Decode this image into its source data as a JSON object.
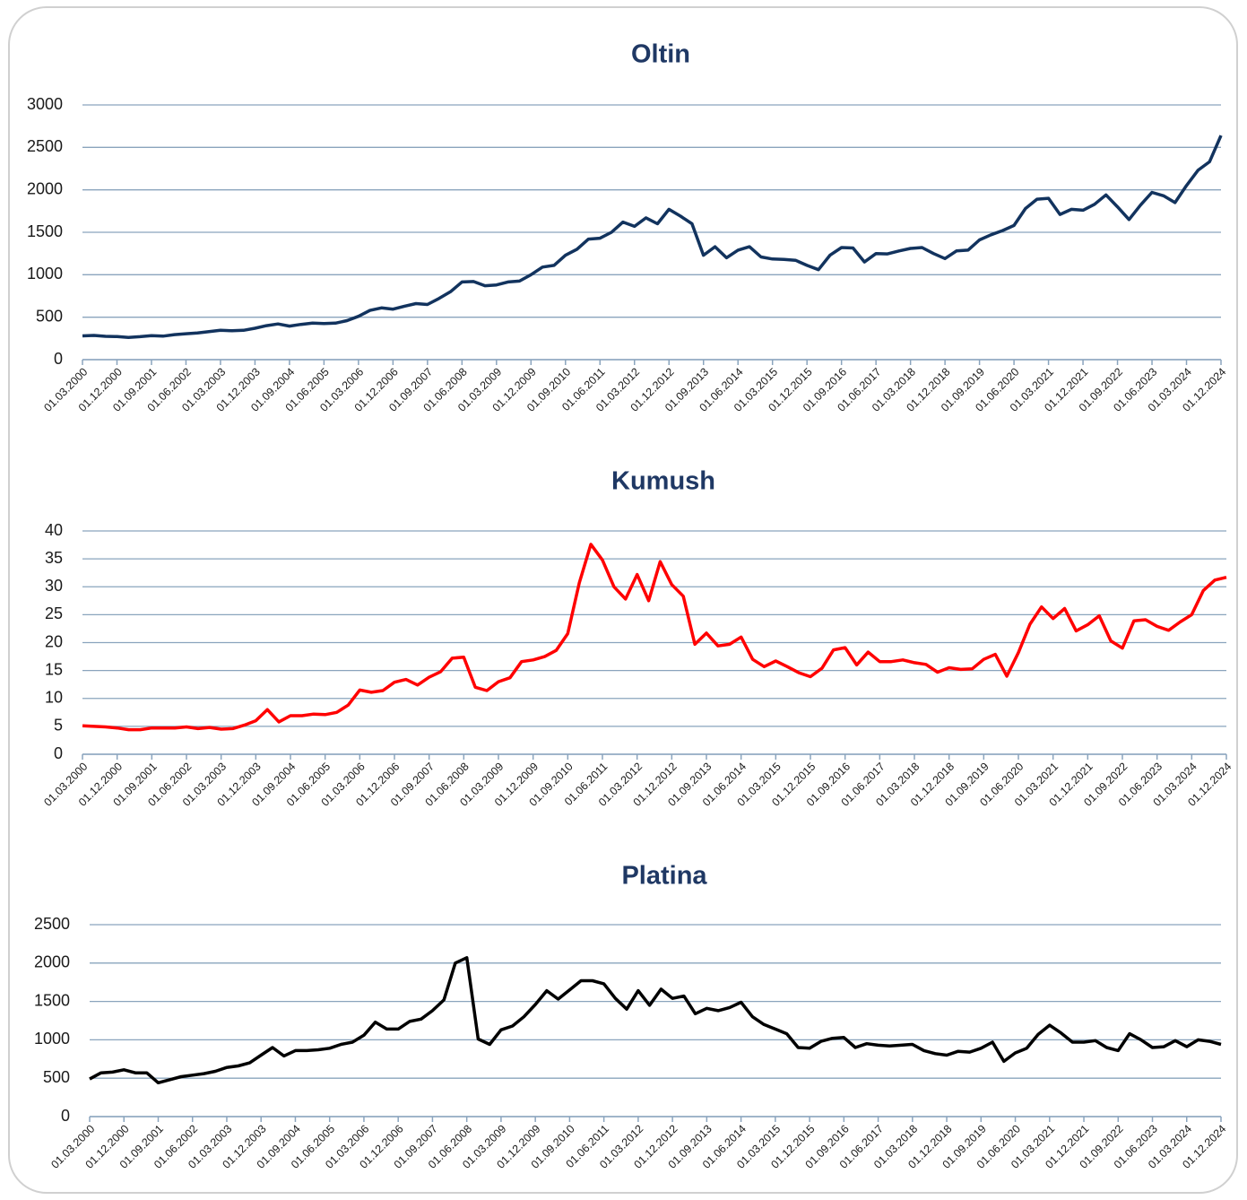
{
  "chart_data": [
    {
      "type": "line",
      "title": "Oltin",
      "color": "#12335e",
      "grid": true,
      "categories": [
        "01.03.2000",
        null,
        null,
        "01.12.2000",
        null,
        null,
        "01.09.2001",
        null,
        null,
        "01.06.2002",
        null,
        null,
        "01.03.2003",
        null,
        null,
        "01.12.2003",
        null,
        null,
        "01.09.2004",
        null,
        null,
        "01.06.2005",
        null,
        null,
        "01.03.2006",
        null,
        null,
        "01.12.2006",
        null,
        null,
        "01.09.2007",
        null,
        null,
        "01.06.2008",
        null,
        null,
        "01.03.2009",
        null,
        null,
        "01.12.2009",
        null,
        null,
        "01.09.2010",
        null,
        null,
        "01.06.2011",
        null,
        null,
        "01.03.2012",
        null,
        null,
        "01.12.2012",
        null,
        null,
        "01.09.2013",
        null,
        null,
        "01.06.2014",
        null,
        null,
        "01.03.2015",
        null,
        null,
        "01.12.2015",
        null,
        null,
        "01.09.2016",
        null,
        null,
        "01.06.2017",
        null,
        null,
        "01.03.2018",
        null,
        null,
        "01.12.2018",
        null,
        null,
        "01.09.2019",
        null,
        null,
        "01.06.2020",
        null,
        null,
        "01.03.2021",
        null,
        null,
        "01.12.2021",
        null,
        null,
        "01.09.2022",
        null,
        null,
        "01.06.2023",
        null,
        null,
        "01.03.2024",
        null,
        null,
        "01.12.2024"
      ],
      "values": [
        280,
        285,
        275,
        272,
        262,
        270,
        283,
        277,
        295,
        305,
        315,
        330,
        345,
        340,
        345,
        370,
        400,
        420,
        395,
        415,
        430,
        425,
        430,
        460,
        510,
        580,
        610,
        595,
        630,
        660,
        650,
        720,
        800,
        915,
        920,
        870,
        880,
        915,
        925,
        1000,
        1090,
        1110,
        1230,
        1300,
        1420,
        1430,
        1500,
        1620,
        1570,
        1670,
        1600,
        1770,
        1690,
        1600,
        1230,
        1330,
        1200,
        1290,
        1330,
        1210,
        1185,
        1180,
        1170,
        1110,
        1060,
        1230,
        1320,
        1315,
        1150,
        1250,
        1245,
        1280,
        1310,
        1320,
        1250,
        1190,
        1280,
        1290,
        1410,
        1470,
        1520,
        1580,
        1780,
        1890,
        1900,
        1710,
        1770,
        1760,
        1830,
        1940,
        1800,
        1650,
        1820,
        1970,
        1930,
        1850,
        2050,
        2230,
        2330,
        2640
      ],
      "ylim": [
        0,
        3000
      ],
      "yticks": [
        0,
        500,
        1000,
        1500,
        2000,
        2500,
        3000
      ]
    },
    {
      "type": "line",
      "title": "Kumush",
      "color": "#ff0000",
      "grid": true,
      "categories": [
        "01.03.2000",
        null,
        null,
        "01.12.2000",
        null,
        null,
        "01.09.2001",
        null,
        null,
        "01.06.2002",
        null,
        null,
        "01.03.2003",
        null,
        null,
        "01.12.2003",
        null,
        null,
        "01.09.2004",
        null,
        null,
        "01.06.2005",
        null,
        null,
        "01.03.2006",
        null,
        null,
        "01.12.2006",
        null,
        null,
        "01.09.2007",
        null,
        null,
        "01.06.2008",
        null,
        null,
        "01.03.2009",
        null,
        null,
        "01.12.2009",
        null,
        null,
        "01.09.2010",
        null,
        null,
        "01.06.2011",
        null,
        null,
        "01.03.2012",
        null,
        null,
        "01.12.2012",
        null,
        null,
        "01.09.2013",
        null,
        null,
        "01.06.2014",
        null,
        null,
        "01.03.2015",
        null,
        null,
        "01.12.2015",
        null,
        null,
        "01.09.2016",
        null,
        null,
        "01.06.2017",
        null,
        null,
        "01.03.2018",
        null,
        null,
        "01.12.2018",
        null,
        null,
        "01.09.2019",
        null,
        null,
        "01.06.2020",
        null,
        null,
        "01.03.2021",
        null,
        null,
        "01.12.2021",
        null,
        null,
        "01.09.2022",
        null,
        null,
        "01.06.2023",
        null,
        null,
        "01.03.2024",
        null,
        null,
        "01.12.2024"
      ],
      "values": [
        5.1,
        5.0,
        4.9,
        4.7,
        4.4,
        4.4,
        4.7,
        4.7,
        4.7,
        4.9,
        4.6,
        4.8,
        4.5,
        4.6,
        5.2,
        6.0,
        8.0,
        5.8,
        6.9,
        6.9,
        7.2,
        7.1,
        7.5,
        8.8,
        11.5,
        11.1,
        11.4,
        12.9,
        13.4,
        12.4,
        13.8,
        14.8,
        17.2,
        17.4,
        12.0,
        11.4,
        13.0,
        13.7,
        16.6,
        16.9,
        17.5,
        18.6,
        21.6,
        30.7,
        37.6,
        34.8,
        30.0,
        27.8,
        32.2,
        27.5,
        34.5,
        30.4,
        28.3,
        19.7,
        21.7,
        19.4,
        19.7,
        21.0,
        17.0,
        15.7,
        16.7,
        15.7,
        14.6,
        13.9,
        15.4,
        18.7,
        19.1,
        16.0,
        18.3,
        16.6,
        16.6,
        16.9,
        16.4,
        16.1,
        14.7,
        15.5,
        15.2,
        15.3,
        17.0,
        17.9,
        14.0,
        18.2,
        23.3,
        26.4,
        24.3,
        26.1,
        22.1,
        23.2,
        24.8,
        20.3,
        19.0,
        23.9,
        24.1,
        22.9,
        22.2,
        23.7,
        25.0,
        29.3,
        31.2,
        31.7
      ],
      "ylim": [
        0,
        40
      ],
      "yticks": [
        0,
        5,
        10,
        15,
        20,
        25,
        30,
        35,
        40
      ]
    },
    {
      "type": "line",
      "title": "Platina",
      "color": "#000000",
      "grid": true,
      "categories": [
        "01.03.2000",
        null,
        null,
        "01.12.2000",
        null,
        null,
        "01.09.2001",
        null,
        null,
        "01.06.2002",
        null,
        null,
        "01.03.2003",
        null,
        null,
        "01.12.2003",
        null,
        null,
        "01.09.2004",
        null,
        null,
        "01.06.2005",
        null,
        null,
        "01.03.2006",
        null,
        null,
        "01.12.2006",
        null,
        null,
        "01.09.2007",
        null,
        null,
        "01.06.2008",
        null,
        null,
        "01.03.2009",
        null,
        null,
        "01.12.2009",
        null,
        null,
        "01.09.2010",
        null,
        null,
        "01.06.2011",
        null,
        null,
        "01.03.2012",
        null,
        null,
        "01.12.2012",
        null,
        null,
        "01.09.2013",
        null,
        null,
        "01.06.2014",
        null,
        null,
        "01.03.2015",
        null,
        null,
        "01.12.2015",
        null,
        null,
        "01.09.2016",
        null,
        null,
        "01.06.2017",
        null,
        null,
        "01.03.2018",
        null,
        null,
        "01.12.2018",
        null,
        null,
        "01.09.2019",
        null,
        null,
        "01.06.2020",
        null,
        null,
        "01.03.2021",
        null,
        null,
        "01.12.2021",
        null,
        null,
        "01.09.2022",
        null,
        null,
        "01.06.2023",
        null,
        null,
        "01.03.2024",
        null,
        null,
        "01.12.2024"
      ],
      "values": [
        490,
        570,
        580,
        610,
        570,
        570,
        440,
        480,
        520,
        540,
        560,
        590,
        640,
        660,
        700,
        800,
        900,
        790,
        860,
        860,
        870,
        890,
        940,
        970,
        1060,
        1230,
        1140,
        1140,
        1240,
        1270,
        1380,
        1520,
        2000,
        2070,
        1010,
        940,
        1130,
        1180,
        1300,
        1460,
        1640,
        1530,
        1650,
        1770,
        1770,
        1730,
        1540,
        1400,
        1640,
        1450,
        1660,
        1540,
        1570,
        1340,
        1410,
        1380,
        1420,
        1490,
        1300,
        1200,
        1140,
        1080,
        900,
        890,
        980,
        1020,
        1030,
        900,
        950,
        930,
        920,
        930,
        940,
        860,
        820,
        800,
        850,
        840,
        890,
        970,
        720,
        830,
        890,
        1070,
        1190,
        1090,
        970,
        970,
        990,
        900,
        860,
        1080,
        1000,
        900,
        910,
        990,
        910,
        1000,
        980,
        940
      ],
      "ylim": [
        0,
        2500
      ],
      "yticks": [
        0,
        500,
        1000,
        1500,
        2000,
        2500
      ]
    }
  ]
}
